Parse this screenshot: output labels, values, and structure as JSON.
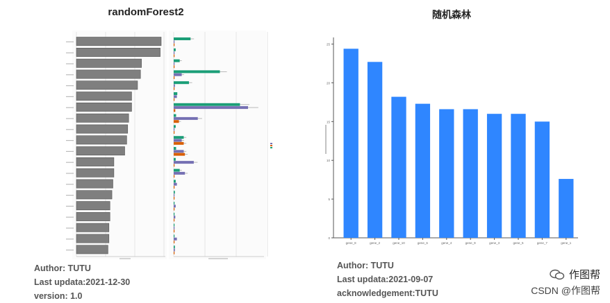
{
  "left": {
    "title": "randomForest2",
    "meta": [
      "Author: TUTU",
      "Last updata:2021-12-30",
      "version: 1.0"
    ]
  },
  "right": {
    "title": "随机森林",
    "meta": [
      "Author: TUTU",
      "Last updata:2021-09-07",
      "acknowledgement:TUTU"
    ]
  },
  "watermark": {
    "account": "作图帮",
    "site": "CSDN @作图帮"
  },
  "colors": {
    "gray_bar": "#7f7f7f",
    "green": "#1b9e77",
    "purple": "#7570b3",
    "orange": "#d95f02",
    "blue": "#2f86ff"
  },
  "chart_data": [
    {
      "type": "bar",
      "orientation": "horizontal",
      "panel": "left-importance",
      "values": [
        8.6,
        8.5,
        6.6,
        6.5,
        6.2,
        5.6,
        5.6,
        5.3,
        5.2,
        5.1,
        4.9,
        3.8,
        3.8,
        3.7,
        3.6,
        3.4,
        3.4,
        3.3,
        3.3,
        3.2
      ]
    },
    {
      "type": "bar",
      "orientation": "horizontal",
      "panel": "left-by-class",
      "series": [
        {
          "name": "green",
          "values": [
            4.2,
            0.5,
            1.5,
            11.5,
            3.8,
            0.9,
            16.5,
            0.6,
            0.5,
            2.5,
            0.6,
            0.5,
            1.5,
            0.5,
            0.3,
            0.2,
            0.2,
            0.2,
            0.2,
            0.3
          ]
        },
        {
          "name": "purple",
          "values": [
            0.2,
            0.2,
            0.2,
            2.0,
            0.3,
            0.8,
            18.5,
            6.0,
            0.2,
            2.0,
            2.5,
            5.0,
            2.8,
            0.8,
            0.2,
            0.5,
            0.4,
            0.2,
            0.8,
            0.3
          ]
        },
        {
          "name": "orange",
          "values": [
            0.1,
            0.1,
            0.1,
            0.1,
            0.1,
            0.1,
            0.4,
            1.3,
            0.1,
            2.5,
            2.8,
            0.1,
            0.1,
            0.1,
            0.1,
            0.1,
            0.1,
            0.1,
            0.1,
            0.1
          ]
        }
      ]
    },
    {
      "type": "bar",
      "panel": "right",
      "categories": [
        "gene_8",
        "gene_2",
        "gene_10",
        "gene_6",
        "gene_4",
        "gene_9",
        "gene_3",
        "gene_5",
        "gene_7",
        "gene_1"
      ],
      "values": [
        24.4,
        22.7,
        18.2,
        17.3,
        16.6,
        16.6,
        16.0,
        16.0,
        15.0,
        7.6
      ],
      "ylim": [
        0,
        25.5
      ],
      "yticks": [
        0,
        5,
        10,
        15,
        20,
        25
      ]
    }
  ]
}
